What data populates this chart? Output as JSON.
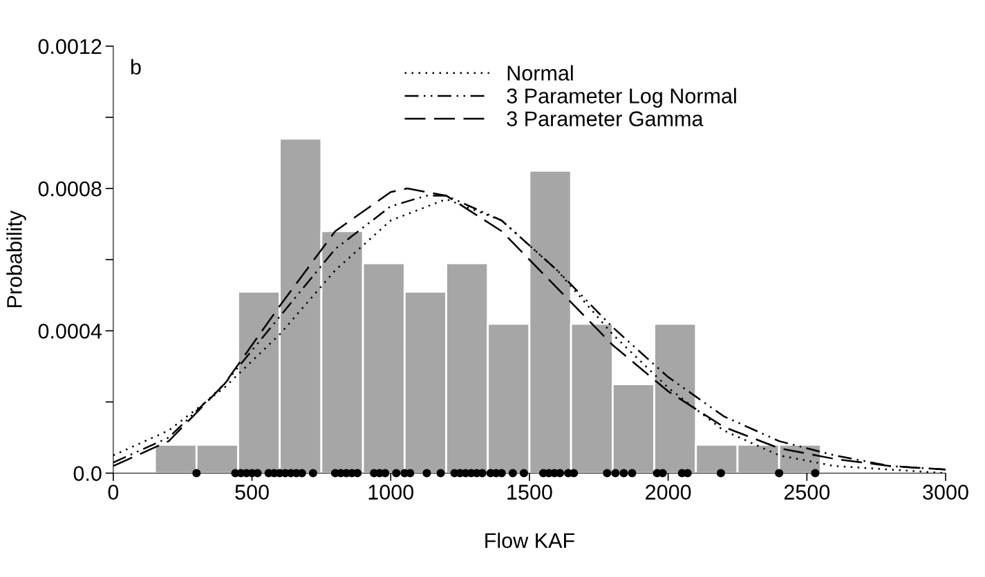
{
  "chart_data": {
    "type": "histogram",
    "xlabel": "Flow KAF",
    "ylabel": "Probability",
    "annotations": [
      "b"
    ],
    "bins": [
      150,
      300,
      450,
      600,
      750,
      900,
      1050,
      1200,
      1350,
      1500,
      1650,
      1800,
      1950,
      2100,
      2250,
      2400,
      2550
    ],
    "values": [
      8e-05,
      8e-05,
      0.00051,
      0.00094,
      0.00068,
      0.00059,
      0.00051,
      0.00059,
      0.00042,
      0.00085,
      0.00042,
      0.00025,
      0.00042,
      8e-05,
      8e-05,
      8e-05
    ],
    "color": "#a6a6a6",
    "series": [
      {
        "type": "line",
        "name": "Normal",
        "color": "#000000",
        "line_style": "dotted",
        "x": [
          0,
          200,
          400,
          600,
          800,
          1000,
          1200,
          1400,
          1600,
          1800,
          2000,
          2200,
          2400,
          2600,
          2800,
          3000
        ],
        "values": [
          5e-05,
          0.00012,
          0.00024,
          0.00039,
          0.00057,
          0.00071,
          0.00077,
          0.00071,
          0.00057,
          0.00039,
          0.00024,
          0.00012,
          5e-05,
          2e-05,
          1e-05,
          0
        ]
      },
      {
        "type": "line",
        "name": "3 Parameter Log Normal",
        "color": "#000000",
        "line_style": "dashdot",
        "x": [
          0,
          200,
          400,
          600,
          800,
          1000,
          1130,
          1200,
          1400,
          1600,
          1800,
          2000,
          2200,
          2400,
          2600,
          2800,
          3000
        ],
        "values": [
          3e-05,
          0.0001,
          0.00025,
          0.00044,
          0.00063,
          0.00075,
          0.00078,
          0.00078,
          0.00071,
          0.00057,
          0.00041,
          0.00027,
          0.00016,
          9e-05,
          5e-05,
          2e-05,
          1e-05
        ]
      },
      {
        "type": "line",
        "name": "3 Parameter Gamma",
        "color": "#000000",
        "line_style": "dashed",
        "x": [
          0,
          200,
          400,
          600,
          800,
          1000,
          1060,
          1200,
          1400,
          1600,
          1800,
          2000,
          2200,
          2400,
          2600,
          2800,
          3000
        ],
        "values": [
          2e-05,
          9e-05,
          0.00025,
          0.00047,
          0.00068,
          0.00079,
          0.0008,
          0.00078,
          0.00068,
          0.00052,
          0.00036,
          0.00023,
          0.00013,
          7e-05,
          4e-05,
          2e-05,
          1e-05
        ]
      },
      {
        "type": "scatter",
        "color": "#000000",
        "marker": "circle",
        "x": [
          300,
          440,
          460,
          480,
          500,
          520,
          560,
          580,
          600,
          620,
          640,
          660,
          680,
          720,
          800,
          820,
          840,
          860,
          880,
          940,
          960,
          980,
          1020,
          1050,
          1070,
          1130,
          1180,
          1230,
          1250,
          1270,
          1290,
          1310,
          1330,
          1360,
          1380,
          1400,
          1440,
          1480,
          1550,
          1570,
          1590,
          1610,
          1640,
          1660,
          1780,
          1810,
          1840,
          1870,
          1960,
          1980,
          2050,
          2070,
          2190,
          2400,
          2530
        ],
        "values": [
          0,
          0,
          0,
          0,
          0,
          0,
          0,
          0,
          0,
          0,
          0,
          0,
          0,
          0,
          0,
          0,
          0,
          0,
          0,
          0,
          0,
          0,
          0,
          0,
          0,
          0,
          0,
          0,
          0,
          0,
          0,
          0,
          0,
          0,
          0,
          0,
          0,
          0,
          0,
          0,
          0,
          0,
          0,
          0,
          0,
          0,
          0,
          0,
          0,
          0,
          0,
          0,
          0,
          0,
          0
        ]
      }
    ],
    "xlim": [
      0,
      3000
    ],
    "xticks": [
      0,
      500,
      1000,
      1500,
      2000,
      2500,
      3000
    ],
    "ylim": [
      0,
      0.0012
    ],
    "yticks": [
      {
        "value": 0,
        "label": "0.0"
      },
      {
        "value": 0.0002,
        "label": null
      },
      {
        "value": 0.0004,
        "label": "0.0004"
      },
      {
        "value": 0.0006,
        "label": null
      },
      {
        "value": 0.0008,
        "label": "0.0008"
      },
      {
        "value": 0.001,
        "label": null
      },
      {
        "value": 0.0012,
        "label": "0.0012"
      }
    ],
    "legend": "top",
    "grid": false
  }
}
